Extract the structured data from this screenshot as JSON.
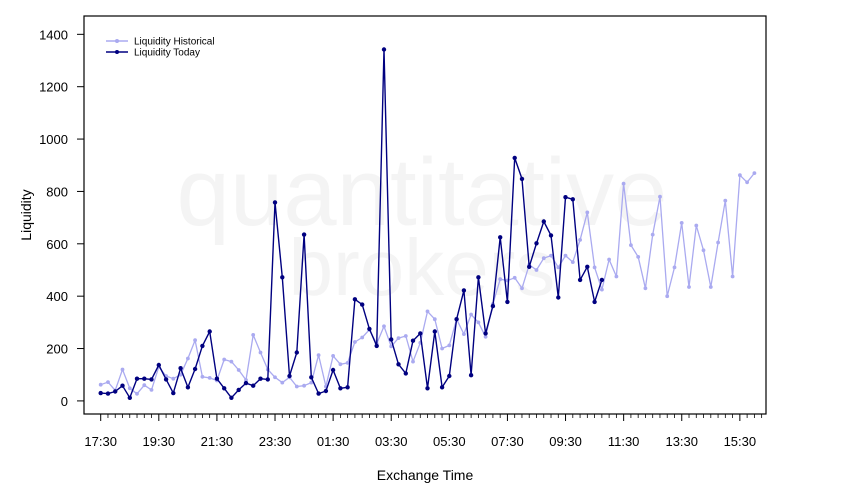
{
  "chart_data": {
    "type": "line",
    "xlabel": "Exchange Time",
    "ylabel": "Liquidity",
    "x_tick_labels": [
      "17:30",
      "19:30",
      "21:30",
      "23:30",
      "01:30",
      "03:30",
      "05:30",
      "07:30",
      "09:30",
      "11:30",
      "13:30",
      "15:30"
    ],
    "y_ticks": [
      0,
      200,
      400,
      600,
      800,
      1000,
      1200,
      1400
    ],
    "ylim": [
      -50,
      1470
    ],
    "x_range_index": [
      -2.3,
      91.6
    ],
    "legend_position": "top-left",
    "watermark": [
      "quantitative",
      "brokers"
    ],
    "series": [
      {
        "name": "Liquidity Historical",
        "color": "#aaaaf0",
        "values": [
          62,
          72,
          40,
          120,
          48,
          27,
          60,
          42,
          130,
          95,
          85,
          100,
          162,
          232,
          92,
          88,
          78,
          158,
          150,
          118,
          80,
          252,
          185,
          120,
          90,
          70,
          90,
          55,
          58,
          70,
          175,
          55,
          172,
          140,
          145,
          225,
          242,
          272,
          218,
          285,
          208,
          240,
          248,
          150,
          222,
          342,
          312,
          200,
          212,
          312,
          255,
          330,
          300,
          245,
          370,
          465,
          460,
          470,
          430,
          520,
          500,
          545,
          555,
          510,
          555,
          530,
          615,
          720,
          510,
          425,
          540,
          475,
          830,
          595,
          550,
          430,
          635,
          780,
          400,
          510,
          680,
          435,
          670,
          575,
          435,
          605,
          765,
          475,
          862,
          835,
          870
        ]
      },
      {
        "name": "Liquidity Today",
        "color": "#000080",
        "values": [
          30,
          28,
          36,
          58,
          12,
          85,
          85,
          82,
          137,
          82,
          30,
          125,
          52,
          122,
          210,
          265,
          85,
          48,
          12,
          42,
          68,
          58,
          85,
          82,
          758,
          472,
          95,
          185,
          635,
          90,
          28,
          38,
          118,
          48,
          52,
          388,
          368,
          275,
          210,
          1342,
          235,
          140,
          105,
          230,
          258,
          48,
          265,
          52,
          95,
          312,
          422,
          98,
          472,
          258,
          362,
          625,
          378,
          928,
          848,
          512,
          602,
          685,
          632,
          395,
          778,
          770,
          462,
          512,
          378,
          462
        ]
      }
    ]
  }
}
